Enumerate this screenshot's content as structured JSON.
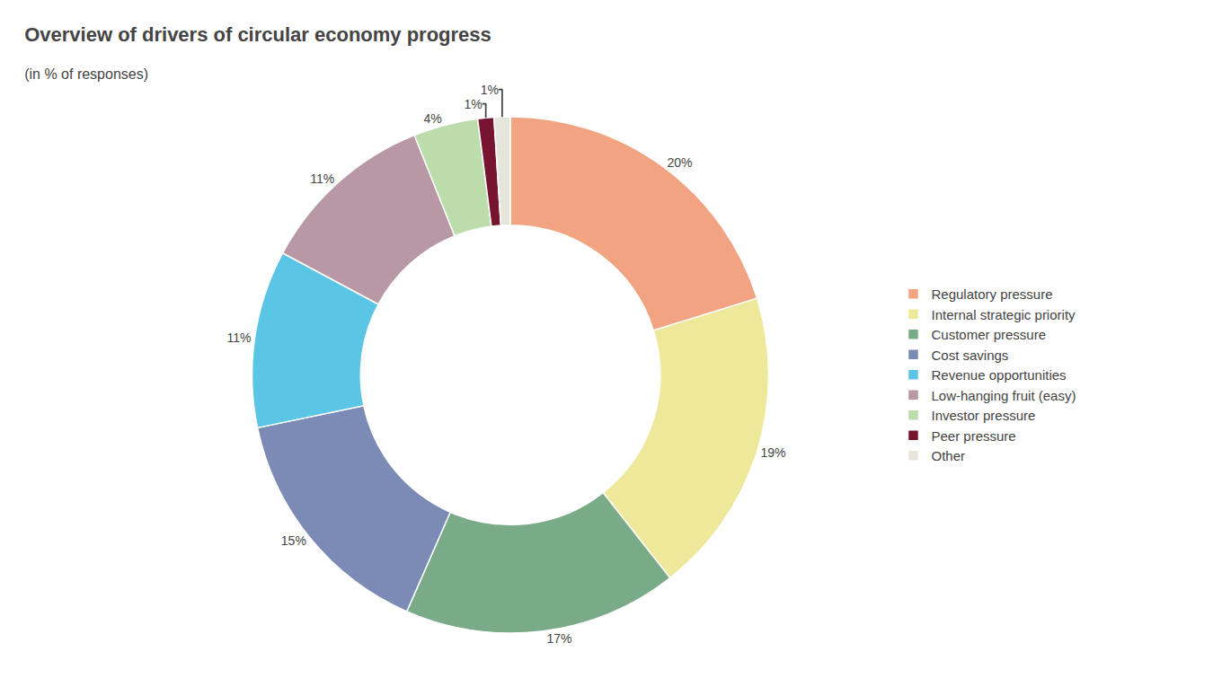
{
  "chart_data": {
    "type": "pie",
    "title": "Overview of drivers of circular economy progress",
    "subtitle": "(in % of responses)",
    "categories": [
      "Regulatory pressure",
      "Internal strategic priority",
      "Customer pressure",
      "Cost savings",
      "Revenue opportunities",
      "Low-hanging fruit (easy)",
      "Investor pressure",
      "Peer pressure",
      "Other"
    ],
    "values": [
      20,
      19,
      17,
      15,
      11,
      11,
      4,
      1,
      1
    ],
    "value_labels": [
      "20%",
      "19%",
      "17%",
      "15%",
      "11%",
      "11%",
      "4%",
      "1%",
      "1%"
    ],
    "colors": [
      "#f2a482",
      "#ede89a",
      "#7aab88",
      "#7b8bb5",
      "#5bc5e5",
      "#b898a5",
      "#bcdcac",
      "#771530",
      "#e5e5dc"
    ],
    "data_labels": true,
    "legend": "right"
  }
}
